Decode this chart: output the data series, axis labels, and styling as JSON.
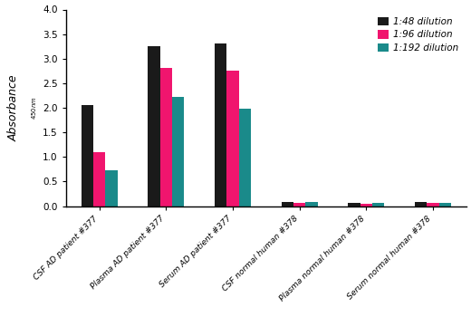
{
  "categories": [
    "CSF AD patient #377",
    "Plasma AD patient #377",
    "Serum AD patient #377",
    "CSF normal human #378",
    "Plasma normal human #378",
    "Serum normal human #378"
  ],
  "series": {
    "1:48 dilution": [
      2.05,
      3.25,
      3.3,
      0.08,
      0.06,
      0.08
    ],
    "1:96 dilution": [
      1.1,
      2.82,
      2.75,
      0.07,
      0.05,
      0.07
    ],
    "1:192 dilution": [
      0.72,
      2.22,
      1.99,
      0.08,
      0.06,
      0.07
    ]
  },
  "colors": {
    "1:48 dilution": "#1a1a1a",
    "1:96 dilution": "#f0156e",
    "1:192 dilution": "#1a8a8a"
  },
  "ylim": [
    0,
    4.0
  ],
  "yticks": [
    0.0,
    0.5,
    1.0,
    1.5,
    2.0,
    2.5,
    3.0,
    3.5,
    4.0
  ],
  "bar_width": 0.18,
  "legend_labels": [
    "1:48 dilution",
    "1:96 dilution",
    "1:192 dilution"
  ],
  "background_color": "#ffffff"
}
